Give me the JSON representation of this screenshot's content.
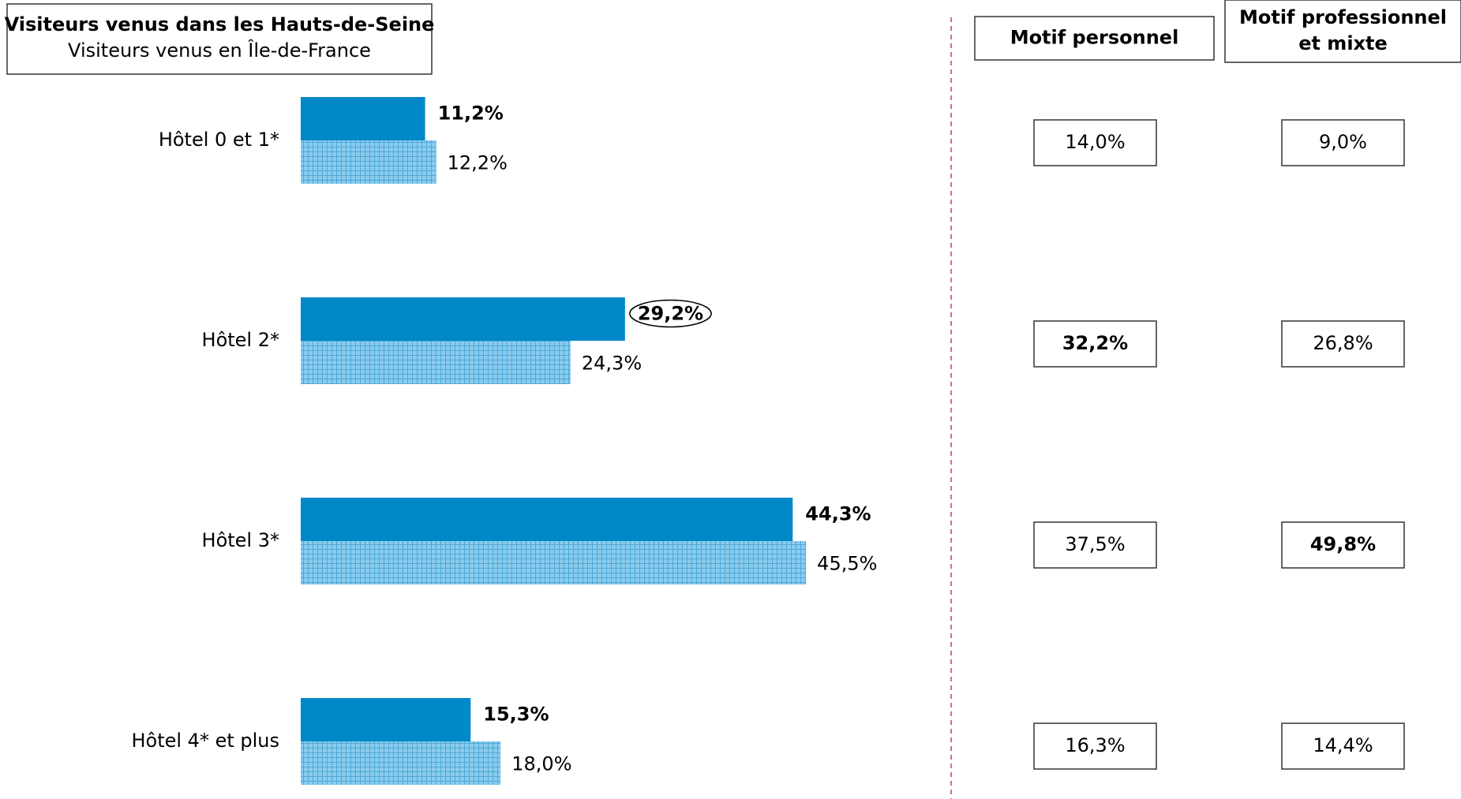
{
  "chart_data": {
    "type": "bar",
    "legend_title": "Visiteurs venus dans les Hauts-de-Seine",
    "legend_subtitle": "Visiteurs venus en Île-de-France",
    "categories": [
      "Hôtel 0 et 1*",
      "Hôtel 2*",
      "Hôtel 3*",
      "Hôtel 4* et plus"
    ],
    "series": [
      {
        "name": "Visiteurs venus dans les Hauts-de-Seine",
        "color": "#0088c8",
        "pattern": "solid",
        "values": [
          11.2,
          29.2,
          44.3,
          15.3
        ],
        "value_labels": [
          "11,2%",
          "29,2%",
          "44,3%",
          "15,3%"
        ],
        "circled": [
          false,
          true,
          false,
          false
        ]
      },
      {
        "name": "Visiteurs venus en Île-de-France",
        "color": "#8acbec",
        "pattern": "grid",
        "values": [
          12.2,
          24.3,
          45.5,
          18.0
        ],
        "value_labels": [
          "12,2%",
          "24,3%",
          "45,5%",
          "18,0%"
        ]
      }
    ],
    "table": {
      "columns": [
        {
          "header": [
            "Motif personnel"
          ],
          "values": [
            14.0,
            32.2,
            37.5,
            16.3
          ],
          "value_labels": [
            "14,0%",
            "32,2%",
            "37,5%",
            "16,3%"
          ],
          "colors": [
            "#000000",
            "#e8000b",
            "#000000",
            "#000000"
          ]
        },
        {
          "header": [
            "Motif professionnel",
            "et mixte"
          ],
          "values": [
            9.0,
            26.8,
            49.8,
            14.4
          ],
          "value_labels": [
            "9,0%",
            "26,8%",
            "49,8%",
            "14,4%"
          ],
          "colors": [
            "#000000",
            "#000000",
            "#e8000b",
            "#000000"
          ]
        }
      ]
    }
  }
}
